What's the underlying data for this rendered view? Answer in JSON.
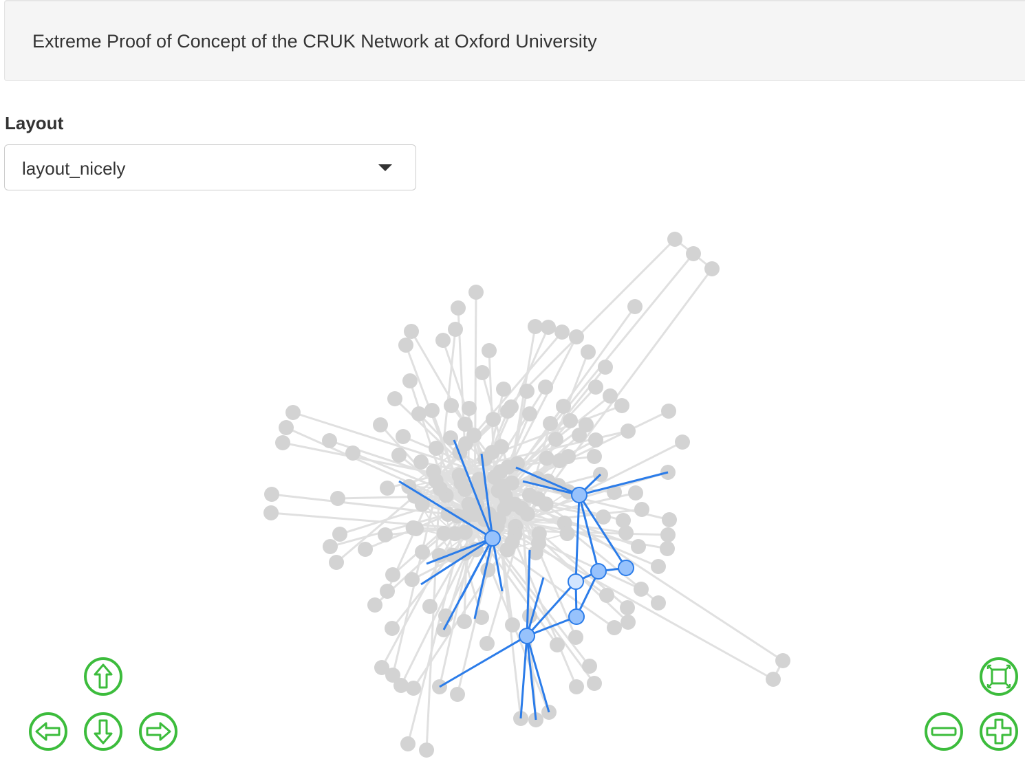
{
  "header": {
    "title": "Extreme Proof of Concept of the CRUK Network at Oxford University"
  },
  "layout_control": {
    "label": "Layout",
    "selected": "layout_nicely"
  },
  "colors": {
    "node_default": "#d3d3d3",
    "edge_default": "#e0e0e0",
    "node_highlight": "#97c2fc",
    "node_highlight_border": "#2b7ce9",
    "edge_highlight": "#2b7ce9",
    "selected_node_fill": "#d2e5ff",
    "nav_button": "#3cbc3c"
  },
  "navigation": [
    {
      "name": "nav-up-button",
      "icon": "arrow-up-icon"
    },
    {
      "name": "nav-left-button",
      "icon": "arrow-left-icon"
    },
    {
      "name": "nav-down-button",
      "icon": "arrow-down-icon"
    },
    {
      "name": "nav-right-button",
      "icon": "arrow-right-icon"
    },
    {
      "name": "zoom-fit-button",
      "icon": "zoom-extends-icon"
    },
    {
      "name": "zoom-out-button",
      "icon": "minus-icon"
    },
    {
      "name": "zoom-in-button",
      "icon": "plus-icon"
    }
  ]
}
